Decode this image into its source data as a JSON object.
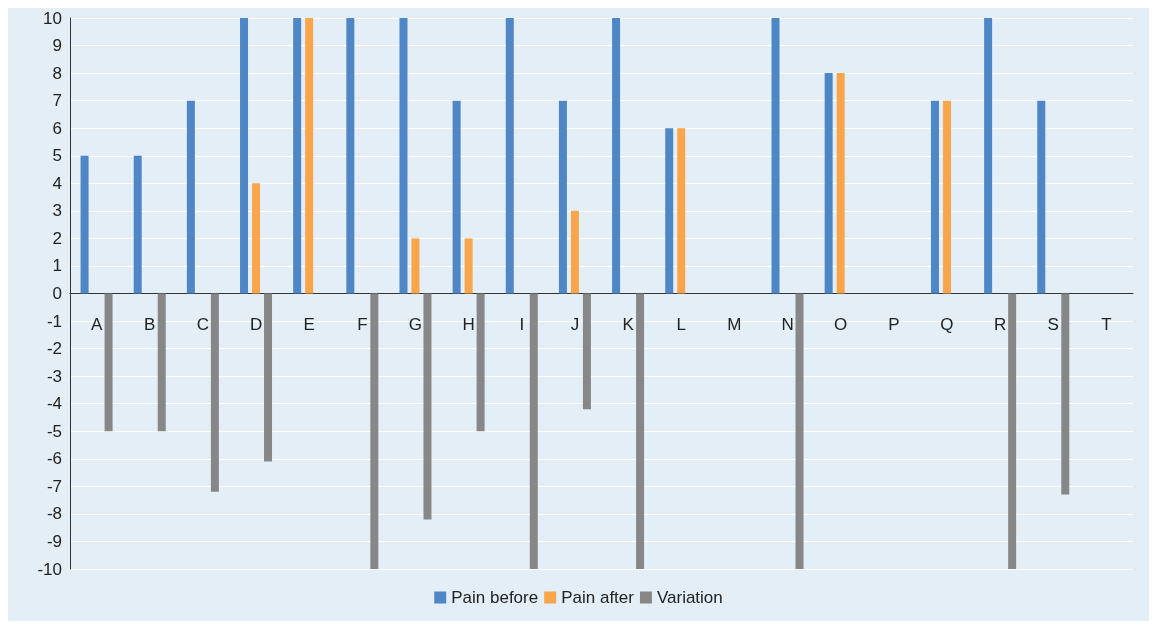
{
  "chart_data": {
    "type": "bar",
    "categories": [
      "A",
      "B",
      "C",
      "D",
      "E",
      "F",
      "G",
      "H",
      "I",
      "J",
      "K",
      "L",
      "M",
      "N",
      "O",
      "P",
      "Q",
      "R",
      "S",
      "T"
    ],
    "series": [
      {
        "name": "Pain before",
        "color": "#4e86c6",
        "values": [
          5,
          5,
          7,
          10,
          10,
          10,
          10,
          7,
          10,
          7,
          10,
          6,
          null,
          10,
          8,
          null,
          7,
          10,
          7,
          null
        ]
      },
      {
        "name": "Pain after",
        "color": "#f8a54b",
        "values": [
          null,
          null,
          null,
          4,
          10,
          null,
          2,
          2,
          null,
          3,
          null,
          6,
          null,
          null,
          8,
          null,
          7,
          null,
          null,
          null
        ]
      },
      {
        "name": "Variation",
        "color": "#878787",
        "values": [
          -5,
          -5,
          -7.2,
          -6.1,
          null,
          -10,
          -8.2,
          -5,
          -10,
          -4.2,
          -10,
          null,
          null,
          -10,
          null,
          null,
          null,
          -10,
          -7.3,
          null
        ]
      }
    ],
    "ylim": [
      -10,
      10
    ],
    "yticks": [
      -10,
      -9,
      -8,
      -7,
      -6,
      -5,
      -4,
      -3,
      -2,
      -1,
      0,
      1,
      2,
      3,
      4,
      5,
      6,
      7,
      8,
      9,
      10
    ],
    "grid": "y",
    "legend": "bottom"
  }
}
